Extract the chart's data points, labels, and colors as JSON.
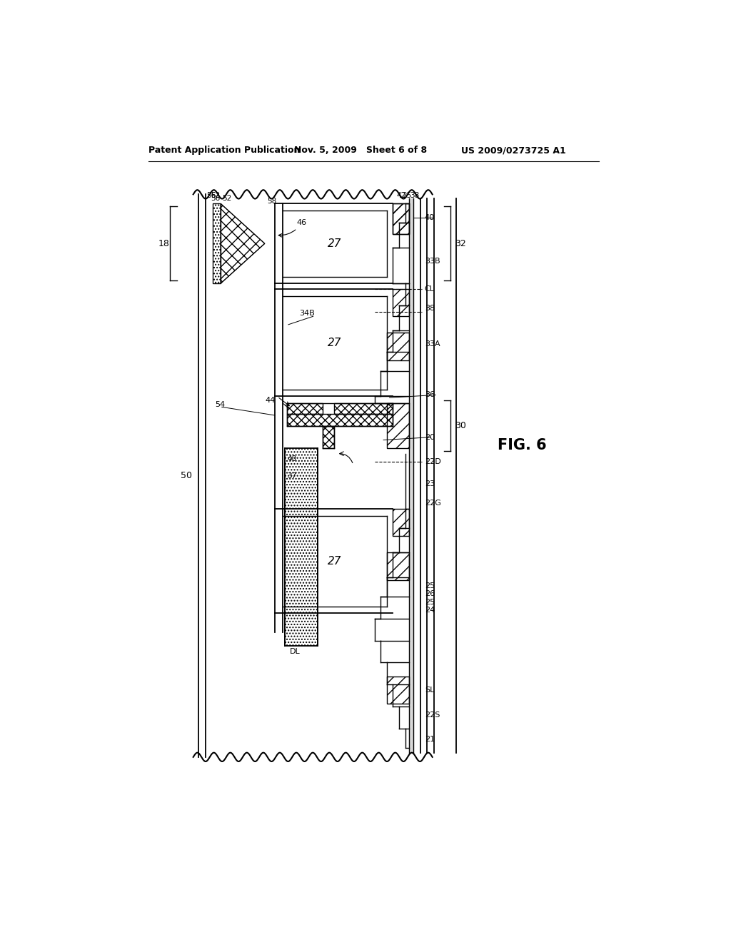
{
  "bg_color": "#ffffff",
  "header_left": "Patent Application Publication",
  "header_mid": "Nov. 5, 2009   Sheet 6 of 8",
  "header_right": "US 2009/0273725 A1",
  "fig_label": "FIG. 6"
}
